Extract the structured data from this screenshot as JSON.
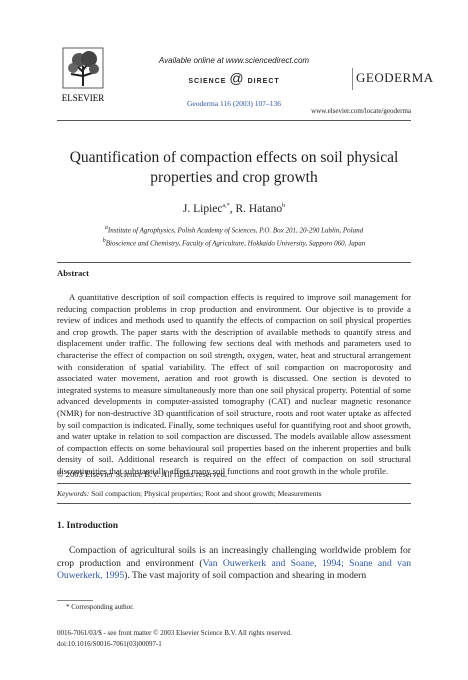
{
  "header": {
    "available": "Available online at www.sciencedirect.com",
    "sd_left": "SCIENCE",
    "sd_at": "@",
    "sd_right": "DIRECT",
    "publisher": "ELSEVIER",
    "journal_ref": "Geoderma 116 (2003) 107–136",
    "journal_logo": "GEODERMA",
    "url": "www.elsevier.com/locate/geoderma"
  },
  "article": {
    "title": "Quantification of compaction effects on soil physical properties and crop growth",
    "authors": [
      {
        "name": "J. Lipiec",
        "sup": "a,*"
      },
      {
        "name": "R. Hatano",
        "sup": "b"
      }
    ],
    "affiliations": [
      {
        "sup": "a",
        "text": "Institute of Agrophysics, Polish Academy of Sciences, P.O. Box 201, 20-290 Lublin, Poland"
      },
      {
        "sup": "b",
        "text": "Bioscience and Chemistry, Faculty of Agriculture, Hokkaido University, Sapporo 060, Japan"
      }
    ],
    "abstract_heading": "Abstract",
    "abstract": "A quantitative description of soil compaction effects is required to improve soil management for reducing compaction problems in crop production and environment. Our objective is to provide a review of indices and methods used to quantify the effects of compaction on soil physical properties and crop growth. The paper starts with the description of available methods to quantify stress and displacement under traffic. The following few sections deal with methods and parameters used to characterise the effect of compaction on soil strength, oxygen, water, heat and structural arrangement with consideration of spatial variability. The effect of soil compaction on macroporosity and associated water movement, aeration and root growth is discussed. One section is devoted to integrated systems to measure simultaneously more than one soil physical property. Potential of some advanced developments in computer-assisted tomography (CAT) and nuclear magnetic resonance (NMR) for non-destructive 3D quantification of soil structure, roots and root water uptake as affected by soil compaction is indicated. Finally, some techniques useful for quantifying root and shoot growth, and water uptake in relation to soil compaction are discussed. The models available allow assessment of compaction effects on some behavioural soil properties based on the inherent properties and bulk density of soil. Additional research is required on the effect of compaction on soil structural discontinuities that substantially affect many soil functions and root growth in the whole profile.",
    "copyright": "© 2003 Elsevier Science B.V. All rights reserved.",
    "keywords_label": "Keywords:",
    "keywords": "Soil compaction; Physical properties; Root and shoot growth; Measurements",
    "section_heading": "1. Introduction",
    "intro": [
      "Compaction of agricultural soils is an increasingly challenging worldwide problem for crop production and environment (",
      "Van Ouwerkerk and Soane, 1994; Soane and van Ouwerkerk, 1995",
      "). The vast majority of soil compaction and shearing in modern"
    ],
    "footnote": "* Corresponding author.",
    "footer": [
      "0016-7061/03/$ - see front matter © 2003 Elsevier Science B.V. All rights reserved.",
      "doi:10.1016/S0016-7061(03)00097-1"
    ]
  }
}
